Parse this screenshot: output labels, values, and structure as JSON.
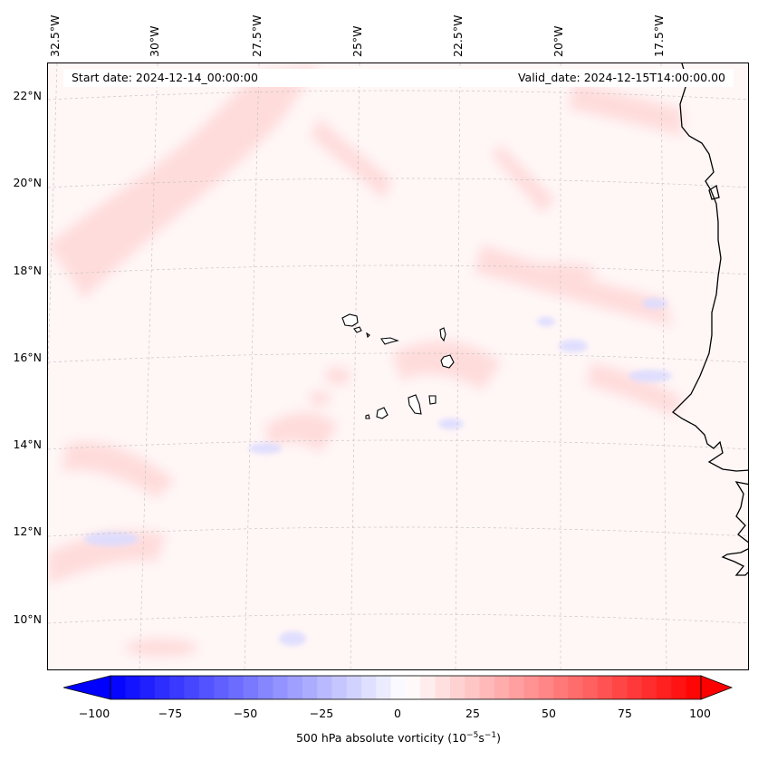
{
  "map": {
    "start_date": "Start date: 2024-12-14_00:00:00",
    "valid_date": "Valid_date: 2024-12-15T14:00:00.00",
    "projection": "Lambert conformal",
    "longitude_labels": [
      "32.5°W",
      "30°W",
      "27.5°W",
      "25°W",
      "22.5°W",
      "20°W",
      "17.5°W"
    ],
    "latitude_labels": [
      "22°N",
      "20°N",
      "18°N",
      "16°N",
      "14°N",
      "12°N",
      "10°N"
    ],
    "features": [
      "Cape Verde islands",
      "West African coastline"
    ],
    "grid": true,
    "colors": {
      "positive": "#ff0000",
      "negative": "#0000ff",
      "neutral": "#ffffff",
      "coast": "#000000"
    }
  },
  "colorbar": {
    "ticks": [
      "−100",
      "−75",
      "−50",
      "−25",
      "0",
      "25",
      "50",
      "75",
      "100"
    ],
    "range": [
      -100,
      100
    ],
    "label_text": "500 hPa absolute vorticity (10",
    "label_exp1": "−5",
    "label_mid": "s",
    "label_exp2": "−1",
    "label_end": ")",
    "extend": "both"
  }
}
